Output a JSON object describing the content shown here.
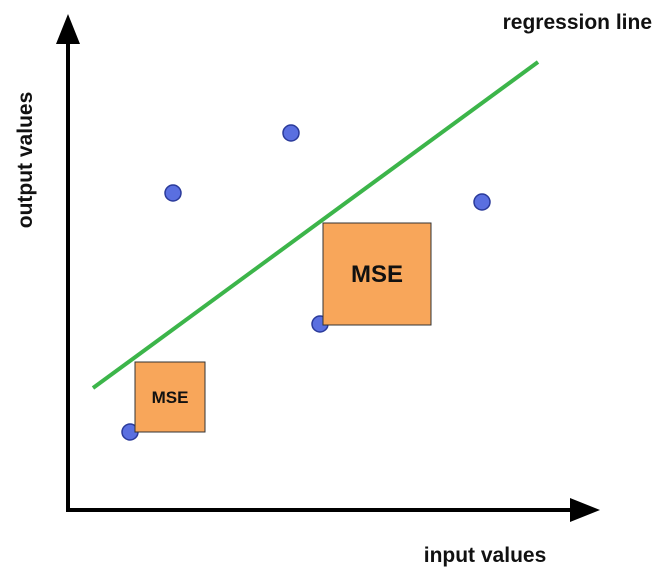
{
  "labels": {
    "regression_line": "regression line",
    "y_axis": "output values",
    "x_axis": "input values"
  },
  "boxes": [
    {
      "label": "MSE"
    },
    {
      "label": "MSE"
    }
  ]
}
